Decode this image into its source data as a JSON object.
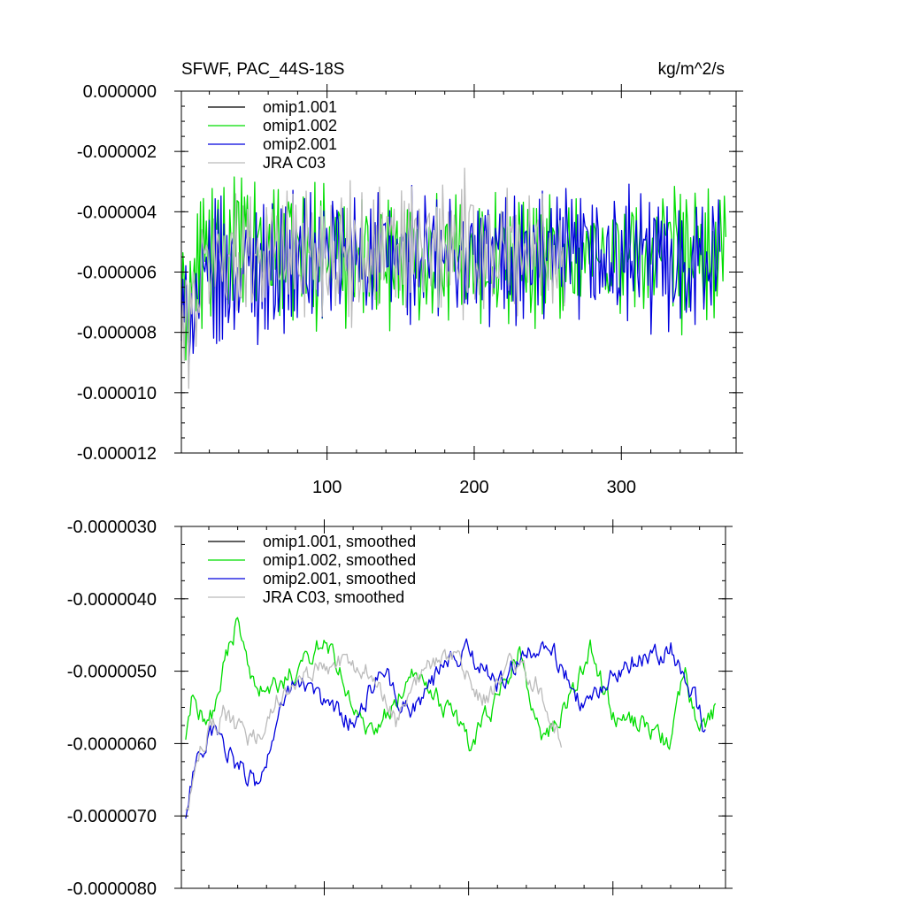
{
  "colors": {
    "omip1_001": "#000000",
    "omip1_002": "#00dd00",
    "omip2_001": "#0000dd",
    "jra_c03": "#bbbbbb",
    "axis": "#000000"
  },
  "chart_data": [
    {
      "type": "line",
      "title": "SFWF, PAC_44S-18S",
      "units": "kg/m^2/s",
      "xlim": [
        1,
        378
      ],
      "ylim": [
        -1.2e-05,
        0.0
      ],
      "x_ticks": [
        100,
        200,
        300
      ],
      "x_tick_labels": [
        "100",
        "200",
        "300"
      ],
      "x_tick_labels_shown": true,
      "y_ticks": [
        0.0,
        -2e-06,
        -4e-06,
        -6e-06,
        -8e-06,
        -1e-05,
        -1.2e-05
      ],
      "y_tick_labels": [
        "0.000000",
        "-0.000002",
        "-0.000004",
        "-0.000006",
        "-0.000008",
        "-0.000010",
        "-0.000012"
      ],
      "y_minor_step": 5e-07,
      "legend_placement": "top-left",
      "noise": "raw",
      "series": [
        {
          "name": "omip1.001",
          "color_key": "omip1_001",
          "x_start": 1,
          "x_end": 1,
          "keypoints": [
            [
              1,
              -7e-06
            ]
          ]
        },
        {
          "name": "omip1.002",
          "color_key": "omip1_002",
          "x_start": 1,
          "x_end": 372,
          "keypoints": [
            [
              1,
              -7.5e-06
            ],
            [
              15,
              -5.5e-06
            ],
            [
              40,
              -5e-06
            ],
            [
              100,
              -5.4e-06
            ],
            [
              200,
              -5.5e-06
            ],
            [
              300,
              -5.4e-06
            ],
            [
              372,
              -5.5e-06
            ]
          ]
        },
        {
          "name": "omip2.001",
          "color_key": "omip2_001",
          "x_start": 1,
          "x_end": 368,
          "keypoints": [
            [
              1,
              -7.8e-06
            ],
            [
              20,
              -6.2e-06
            ],
            [
              60,
              -5.8e-06
            ],
            [
              120,
              -5.5e-06
            ],
            [
              200,
              -5.5e-06
            ],
            [
              300,
              -5.6e-06
            ],
            [
              368,
              -5.6e-06
            ]
          ]
        },
        {
          "name": "JRA C03",
          "color_key": "jra_c03",
          "x_start": 1,
          "x_end": 262,
          "keypoints": [
            [
              1,
              -8.2e-06
            ],
            [
              20,
              -5.6e-06
            ],
            [
              60,
              -5.3e-06
            ],
            [
              120,
              -5.3e-06
            ],
            [
              200,
              -5.2e-06
            ],
            [
              262,
              -5.4e-06
            ]
          ]
        }
      ]
    },
    {
      "type": "line",
      "title": "",
      "units": "",
      "xlim": [
        1,
        378
      ],
      "ylim": [
        -8e-06,
        -3e-06
      ],
      "x_ticks": [
        100,
        200,
        300
      ],
      "x_tick_labels": [
        "100",
        "200",
        "300"
      ],
      "x_tick_labels_shown": false,
      "y_ticks": [
        -3e-06,
        -4e-06,
        -5e-06,
        -6e-06,
        -7e-06,
        -8e-06
      ],
      "y_tick_labels": [
        "-0.0000030",
        "-0.0000040",
        "-0.0000050",
        "-0.0000060",
        "-0.0000070",
        "-0.0000080"
      ],
      "y_minor_step": 2.5e-07,
      "legend_placement": "top-left",
      "noise": "smooth",
      "series": [
        {
          "name": "omip1.001, smoothed",
          "color_key": "omip1_001",
          "x_start": 1,
          "x_end": 1,
          "keypoints": [
            [
              1,
              -7e-06
            ]
          ]
        },
        {
          "name": "omip1.002, smoothed",
          "color_key": "omip1_002",
          "x_start": 4,
          "x_end": 372,
          "keypoints": [
            [
              4,
              -6e-06
            ],
            [
              8,
              -5.4e-06
            ],
            [
              20,
              -5.8e-06
            ],
            [
              30,
              -5e-06
            ],
            [
              40,
              -4.3e-06
            ],
            [
              48,
              -5e-06
            ],
            [
              60,
              -5.3e-06
            ],
            [
              80,
              -5e-06
            ],
            [
              100,
              -4.6e-06
            ],
            [
              130,
              -5.8e-06
            ],
            [
              150,
              -5.5e-06
            ],
            [
              160,
              -4.9e-06
            ],
            [
              180,
              -5.4e-06
            ],
            [
              200,
              -6e-06
            ],
            [
              220,
              -5.4e-06
            ],
            [
              235,
              -4.7e-06
            ],
            [
              250,
              -6e-06
            ],
            [
              270,
              -5.4e-06
            ],
            [
              285,
              -4.7e-06
            ],
            [
              300,
              -5.6e-06
            ],
            [
              320,
              -5.7e-06
            ],
            [
              340,
              -6e-06
            ],
            [
              350,
              -5e-06
            ],
            [
              360,
              -5.8e-06
            ],
            [
              372,
              -5.5e-06
            ]
          ]
        },
        {
          "name": "omip2.001, smoothed",
          "color_key": "omip2_001",
          "x_start": 4,
          "x_end": 365,
          "keypoints": [
            [
              4,
              -7.1e-06
            ],
            [
              10,
              -6.3e-06
            ],
            [
              25,
              -5.8e-06
            ],
            [
              40,
              -6.3e-06
            ],
            [
              55,
              -6.6e-06
            ],
            [
              65,
              -5.8e-06
            ],
            [
              80,
              -5.1e-06
            ],
            [
              100,
              -5.4e-06
            ],
            [
              120,
              -5.7e-06
            ],
            [
              140,
              -5e-06
            ],
            [
              160,
              -5.6e-06
            ],
            [
              180,
              -5e-06
            ],
            [
              200,
              -4.7e-06
            ],
            [
              220,
              -5.2e-06
            ],
            [
              240,
              -4.7e-06
            ],
            [
              260,
              -4.8e-06
            ],
            [
              280,
              -5.5e-06
            ],
            [
              300,
              -5e-06
            ],
            [
              320,
              -4.8e-06
            ],
            [
              340,
              -4.7e-06
            ],
            [
              355,
              -5.3e-06
            ],
            [
              365,
              -5.9e-06
            ]
          ]
        },
        {
          "name": "JRA C03, smoothed",
          "color_key": "jra_c03",
          "x_start": 4,
          "x_end": 265,
          "keypoints": [
            [
              4,
              -7e-06
            ],
            [
              15,
              -6e-06
            ],
            [
              30,
              -5.6e-06
            ],
            [
              50,
              -6e-06
            ],
            [
              70,
              -5.3e-06
            ],
            [
              90,
              -5e-06
            ],
            [
              110,
              -4.9e-06
            ],
            [
              130,
              -5e-06
            ],
            [
              150,
              -5.7e-06
            ],
            [
              170,
              -4.9e-06
            ],
            [
              190,
              -4.8e-06
            ],
            [
              210,
              -5.4e-06
            ],
            [
              230,
              -4.9e-06
            ],
            [
              250,
              -5.2e-06
            ],
            [
              265,
              -6.1e-06
            ]
          ]
        }
      ]
    }
  ]
}
